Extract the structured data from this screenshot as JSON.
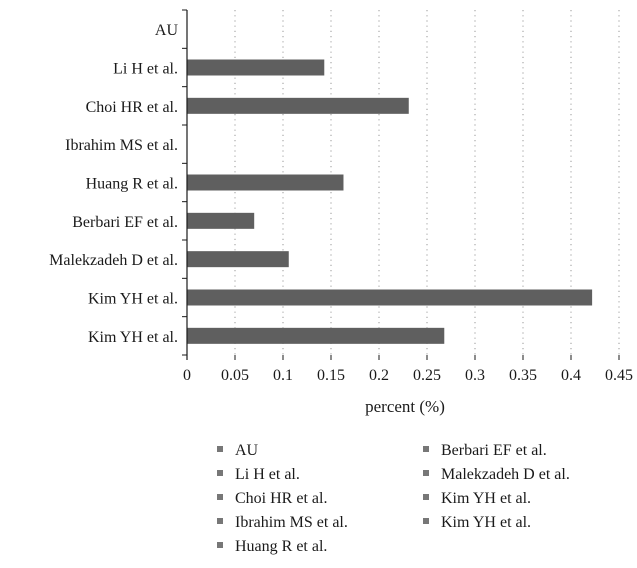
{
  "chart_data": {
    "type": "bar",
    "orientation": "horizontal",
    "categories": [
      "AU",
      "Li H et al.",
      "Choi HR et al.",
      "Ibrahim MS et al.",
      "Huang R et al.",
      "Berbari EF et al.",
      "Malekzadeh D et al.",
      "Kim YH et al.",
      "Kim YH et al."
    ],
    "values": [
      0,
      0.143,
      0.231,
      0,
      0.163,
      0.07,
      0.106,
      0.422,
      0.268
    ],
    "xlabel": "percent (%)",
    "ylabel": "",
    "xlim": [
      0,
      0.45
    ],
    "xticks": [
      "0",
      "0.05",
      "0.1",
      "0.15",
      "0.2",
      "0.25",
      "0.3",
      "0.35",
      "0.4",
      "0.45"
    ],
    "grid": "vertical dotted",
    "legend": {
      "placement": "bottom",
      "entries": [
        "AU",
        "Li H et al.",
        "Choi HR et al.",
        "Ibrahim MS et al.",
        "Huang R et al.",
        "Berbari EF et al.",
        "Malekzadeh D et al.",
        "Kim YH et al.",
        "Kim YH et al."
      ]
    },
    "colors": {
      "bar": "#5f5f5f",
      "legend_swatch": "#777777",
      "grid": "#9a9a9a",
      "axis": "#1a1a1a"
    }
  }
}
